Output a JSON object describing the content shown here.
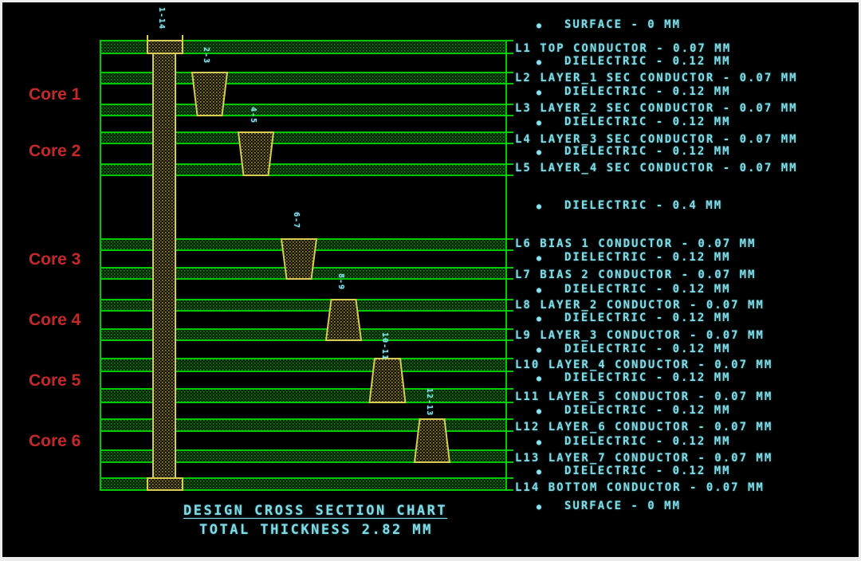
{
  "titles": {
    "chart_title": "DESIGN CROSS SECTION CHART",
    "total_thickness": "TOTAL THICKNESS 2.82 MM"
  },
  "colors": {
    "background": "#000000",
    "line_green": "#00c800",
    "via_yellow": "#d6ce52",
    "text_cyan": "#7fdbe6",
    "core_red": "#c42828",
    "frame_border": "#ececec"
  },
  "cores": [
    "Core 1",
    "Core 2",
    "Core 3",
    "Core 4",
    "Core 5",
    "Core 6"
  ],
  "vias": [
    {
      "span": "1-14",
      "type": "through"
    },
    {
      "span": "2-3",
      "type": "blind-top"
    },
    {
      "span": "4-5",
      "type": "blind-top"
    },
    {
      "span": "6-7",
      "type": "blind-top"
    },
    {
      "span": "8-9",
      "type": "blind-bottom"
    },
    {
      "span": "10-11",
      "type": "blind-bottom"
    },
    {
      "span": "12-13",
      "type": "blind-bottom"
    }
  ],
  "chart_data": {
    "type": "table",
    "title": "DESIGN CROSS SECTION CHART",
    "subtitle": "TOTAL THICKNESS 2.82 MM",
    "total_thickness_mm": 2.82,
    "rows": [
      {
        "id": "",
        "name": "SURFACE",
        "value": "0 MM",
        "bullet": true
      },
      {
        "id": "L1",
        "name": "TOP CONDUCTOR",
        "value": "0.07 MM",
        "bullet": false
      },
      {
        "id": "",
        "name": "DIELECTRIC",
        "value": "0.12 MM",
        "bullet": true
      },
      {
        "id": "L2",
        "name": "LAYER_1 SEC CONDUCTOR",
        "value": "0.07 MM",
        "bullet": false
      },
      {
        "id": "",
        "name": "DIELECTRIC",
        "value": "0.12 MM",
        "bullet": true
      },
      {
        "id": "L3",
        "name": "LAYER_2 SEC CONDUCTOR",
        "value": "0.07 MM",
        "bullet": false
      },
      {
        "id": "",
        "name": "DIELECTRIC",
        "value": "0.12 MM",
        "bullet": true
      },
      {
        "id": "L4",
        "name": "LAYER_3 SEC CONDUCTOR",
        "value": "0.07 MM",
        "bullet": false
      },
      {
        "id": "",
        "name": "DIELECTRIC",
        "value": "0.12 MM",
        "bullet": true
      },
      {
        "id": "L5",
        "name": "LAYER_4 SEC CONDUCTOR",
        "value": "0.07 MM",
        "bullet": false
      },
      {
        "id": "",
        "name": "DIELECTRIC",
        "value": "0.4 MM",
        "bullet": true
      },
      {
        "id": "L6",
        "name": "BIAS 1 CONDUCTOR",
        "value": "0.07 MM",
        "bullet": false
      },
      {
        "id": "",
        "name": "DIELECTRIC",
        "value": "0.12 MM",
        "bullet": true
      },
      {
        "id": "L7",
        "name": "BIAS 2 CONDUCTOR",
        "value": "0.07 MM",
        "bullet": false
      },
      {
        "id": "",
        "name": "DIELECTRIC",
        "value": "0.12 MM",
        "bullet": true
      },
      {
        "id": "L8",
        "name": "LAYER_2 CONDUCTOR",
        "value": "0.07 MM",
        "bullet": false
      },
      {
        "id": "",
        "name": "DIELECTRIC",
        "value": "0.12 MM",
        "bullet": true
      },
      {
        "id": "L9",
        "name": "LAYER_3 CONDUCTOR",
        "value": "0.07 MM",
        "bullet": false
      },
      {
        "id": "",
        "name": "DIELECTRIC",
        "value": "0.12 MM",
        "bullet": true
      },
      {
        "id": "L10",
        "name": "LAYER_4 CONDUCTOR",
        "value": "0.07 MM",
        "bullet": false
      },
      {
        "id": "",
        "name": "DIELECTRIC",
        "value": "0.12 MM",
        "bullet": true
      },
      {
        "id": "L11",
        "name": "LAYER_5 CONDUCTOR",
        "value": "0.07 MM",
        "bullet": false
      },
      {
        "id": "",
        "name": "DIELECTRIC",
        "value": "0.12 MM",
        "bullet": true
      },
      {
        "id": "L12",
        "name": "LAYER_6 CONDUCTOR",
        "value": "0.07 MM",
        "bullet": false
      },
      {
        "id": "",
        "name": "DIELECTRIC",
        "value": "0.12 MM",
        "bullet": true
      },
      {
        "id": "L13",
        "name": "LAYER_7 CONDUCTOR",
        "value": "0.07 MM",
        "bullet": false
      },
      {
        "id": "",
        "name": "DIELECTRIC",
        "value": "0.12 MM",
        "bullet": true
      },
      {
        "id": "L14",
        "name": "BOTTOM CONDUCTOR",
        "value": "0.07 MM",
        "bullet": false
      },
      {
        "id": "",
        "name": "SURFACE",
        "value": "0 MM",
        "bullet": true
      }
    ]
  }
}
